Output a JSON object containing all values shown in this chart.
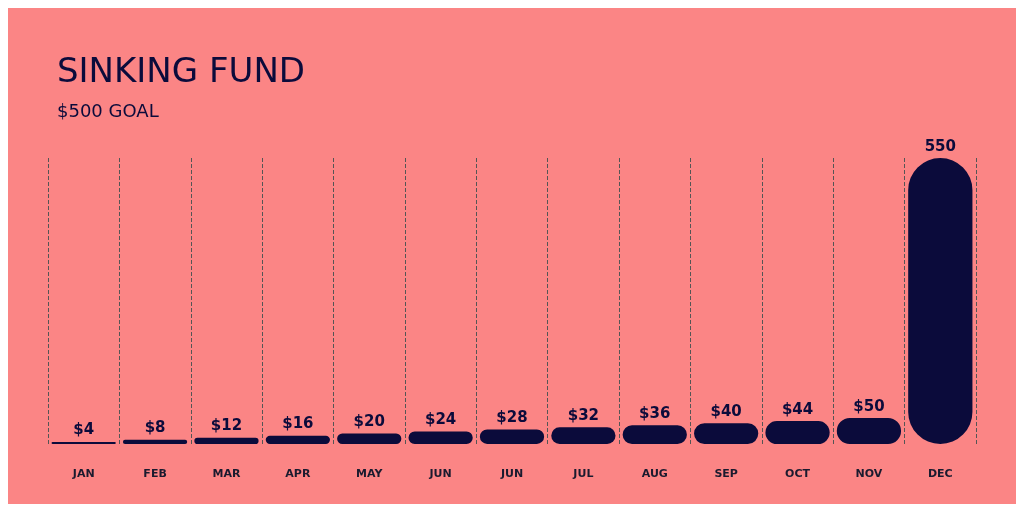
{
  "chart_data": {
    "type": "bar",
    "title": "SINKING FUND",
    "subtitle": "$500 GOAL",
    "categories": [
      "JAN",
      "FEB",
      "MAR",
      "APR",
      "MAY",
      "JUN",
      "JUN",
      "JUL",
      "AUG",
      "SEP",
      "OCT",
      "NOV",
      "DEC"
    ],
    "values": [
      4,
      8,
      12,
      16,
      20,
      24,
      28,
      32,
      36,
      40,
      44,
      50,
      550
    ],
    "value_labels": [
      "$4",
      "$8",
      "$12",
      "$16",
      "$20",
      "$24",
      "$28",
      "$32",
      "$36",
      "$40",
      "$44",
      "$50",
      "550"
    ],
    "color": "#0b0b3b",
    "grid": "x"
  }
}
